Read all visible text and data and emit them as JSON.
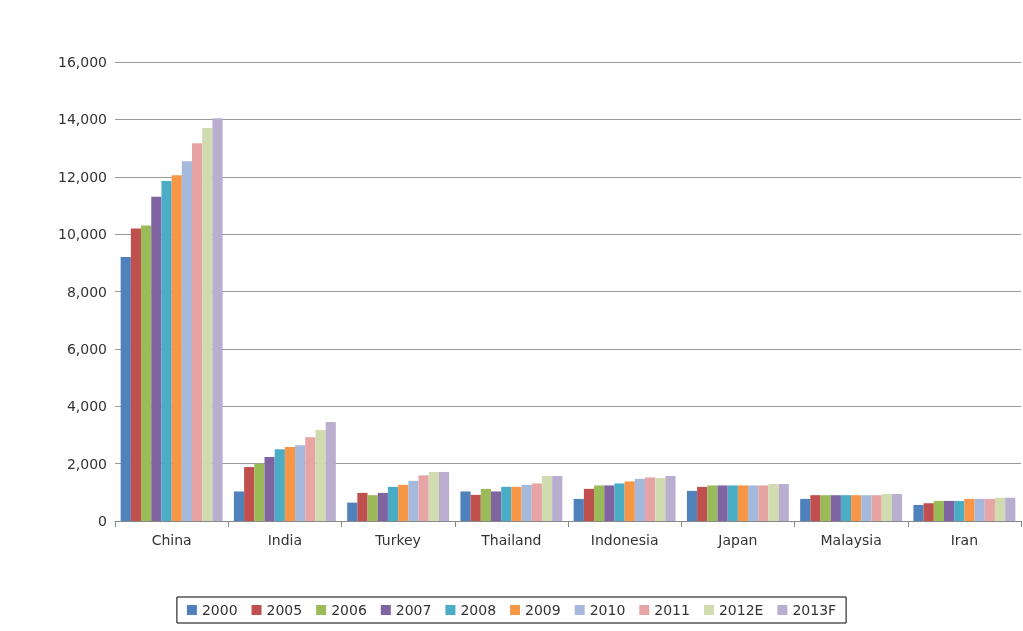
{
  "chart_data": {
    "type": "bar",
    "categories": [
      "China",
      "India",
      "Turkey",
      "Thailand",
      "Indonesia",
      "Japan",
      "Malaysia",
      "Iran"
    ],
    "ylim": [
      0,
      16000
    ],
    "yticks": [
      0,
      {
        "value": 2000,
        "label": "2,000"
      },
      {
        "value": 4000,
        "label": "4,000"
      },
      {
        "value": 6000,
        "label": "6,000"
      },
      {
        "value": 8000,
        "label": "8,000"
      },
      {
        "value": 10000,
        "label": "10,000"
      },
      {
        "value": 12000,
        "label": "12,000"
      },
      {
        "value": 14000,
        "label": "14,000"
      },
      {
        "value": 16000,
        "label": "16,000"
      }
    ],
    "grid": "y",
    "legend": "bottom",
    "series": [
      {
        "name": "2000",
        "color": "#4f81bd",
        "values": [
          9200,
          1030,
          640,
          1030,
          770,
          1050,
          770,
          560
        ]
      },
      {
        "name": "2005",
        "color": "#c0504d",
        "values": [
          10200,
          1880,
          980,
          910,
          1120,
          1190,
          900,
          620
        ]
      },
      {
        "name": "2006",
        "color": "#9bbb59",
        "values": [
          10300,
          2000,
          900,
          1120,
          1240,
          1240,
          900,
          700
        ]
      },
      {
        "name": "2007",
        "color": "#8064a2",
        "values": [
          11300,
          2230,
          980,
          1030,
          1240,
          1240,
          900,
          700
        ]
      },
      {
        "name": "2008",
        "color": "#4bacc6",
        "values": [
          11850,
          2500,
          1190,
          1190,
          1310,
          1240,
          900,
          700
        ]
      },
      {
        "name": "2009",
        "color": "#f79646",
        "values": [
          12050,
          2580,
          1260,
          1190,
          1380,
          1240,
          900,
          770
        ]
      },
      {
        "name": "2010",
        "color": "#a5b9dc",
        "values": [
          12540,
          2640,
          1400,
          1260,
          1470,
          1240,
          900,
          770
        ]
      },
      {
        "name": "2011",
        "color": "#e6a5a4",
        "values": [
          13170,
          2920,
          1590,
          1310,
          1520,
          1240,
          900,
          770
        ]
      },
      {
        "name": "2012E",
        "color": "#d0dcb0",
        "values": [
          13700,
          3170,
          1710,
          1570,
          1500,
          1290,
          940,
          810
        ]
      },
      {
        "name": "2013F",
        "color": "#b9aed0",
        "values": [
          14040,
          3450,
          1710,
          1570,
          1570,
          1290,
          940,
          810
        ]
      }
    ]
  }
}
